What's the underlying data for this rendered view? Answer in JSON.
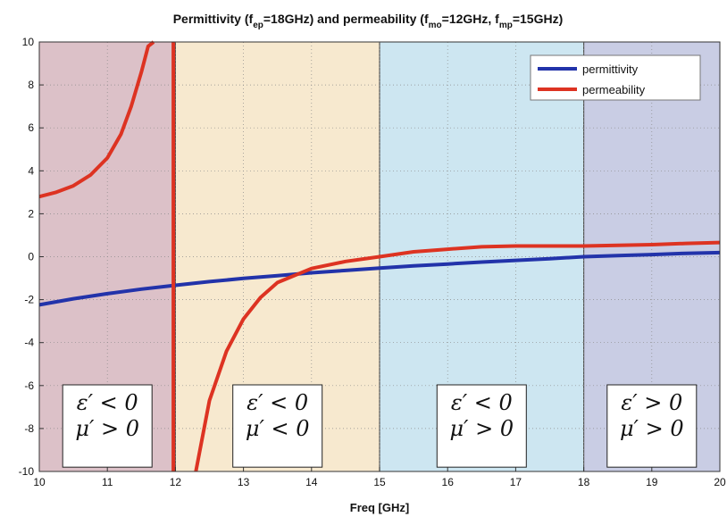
{
  "chart_data": {
    "type": "line",
    "title": {
      "pre": "Permittivity (f",
      "sub1": "ep",
      "mid1": "=18GHz) and permeability (f",
      "sub2": "mo",
      "mid2": "=12GHz, f",
      "sub3": "mp",
      "post": "=15GHz)"
    },
    "xlabel": "Freq [GHz]",
    "ylabel": "",
    "xlim": [
      10,
      20
    ],
    "ylim": [
      -10,
      10
    ],
    "xticks": [
      10,
      11,
      12,
      13,
      14,
      15,
      16,
      17,
      18,
      19,
      20
    ],
    "yticks": [
      -10,
      -8,
      -6,
      -4,
      -2,
      0,
      2,
      4,
      6,
      8,
      10
    ],
    "grid": true,
    "legend_position": "top-right",
    "series": [
      {
        "name": "permittivity",
        "color": "#2233aa",
        "x": [
          10,
          10.5,
          11,
          11.5,
          12,
          12.5,
          13,
          13.5,
          14,
          14.5,
          15,
          15.5,
          16,
          16.5,
          17,
          17.5,
          18,
          18.5,
          19,
          19.5,
          20
        ],
        "y": [
          -2.24,
          -1.96,
          -1.72,
          -1.51,
          -1.33,
          -1.16,
          -1.01,
          -0.88,
          -0.75,
          -0.64,
          -0.53,
          -0.43,
          -0.34,
          -0.25,
          -0.17,
          -0.09,
          0.0,
          0.05,
          0.1,
          0.16,
          0.19
        ]
      },
      {
        "name": "permeability",
        "color": "#dd3322",
        "segments": [
          {
            "x": [
              10,
              10.25,
              10.5,
              10.75,
              11,
              11.2,
              11.35,
              11.5,
              11.6,
              11.68
            ],
            "y": [
              2.8,
              3.0,
              3.3,
              3.8,
              4.6,
              5.7,
              7.0,
              8.6,
              9.8,
              10.0
            ]
          },
          {
            "x": [
              11.97,
              11.97
            ],
            "y": [
              10.0,
              -10.0
            ]
          },
          {
            "x": [
              12.3,
              12.5,
              12.75,
              13,
              13.25,
              13.5,
              14,
              14.5,
              15,
              15.5,
              16,
              16.5,
              17,
              17.5,
              18,
              18.5,
              19,
              19.5,
              20
            ],
            "y": [
              -10.0,
              -6.7,
              -4.4,
              -2.9,
              -1.9,
              -1.2,
              -0.55,
              -0.22,
              0.0,
              0.23,
              0.35,
              0.46,
              0.5,
              0.5,
              0.5,
              0.53,
              0.56,
              0.62,
              0.66
            ]
          }
        ]
      }
    ],
    "regions": [
      {
        "x0": 10,
        "x1": 12,
        "color": "#dcc1c8",
        "eps_op": "<",
        "mu_op": ">"
      },
      {
        "x0": 12,
        "x1": 15,
        "color": "#f7e9cf",
        "eps_op": "<",
        "mu_op": "<"
      },
      {
        "x0": 15,
        "x1": 18,
        "color": "#cde6f1",
        "eps_op": "<",
        "mu_op": ">"
      },
      {
        "x0": 18,
        "x1": 20,
        "color": "#c9cde4",
        "eps_op": ">",
        "mu_op": ">"
      }
    ],
    "region_symbols": {
      "eps": "ε",
      "mu": "μ",
      "prime": "′",
      "zero": "0"
    },
    "region_label_y": [
      -9.55,
      -6.05
    ]
  }
}
